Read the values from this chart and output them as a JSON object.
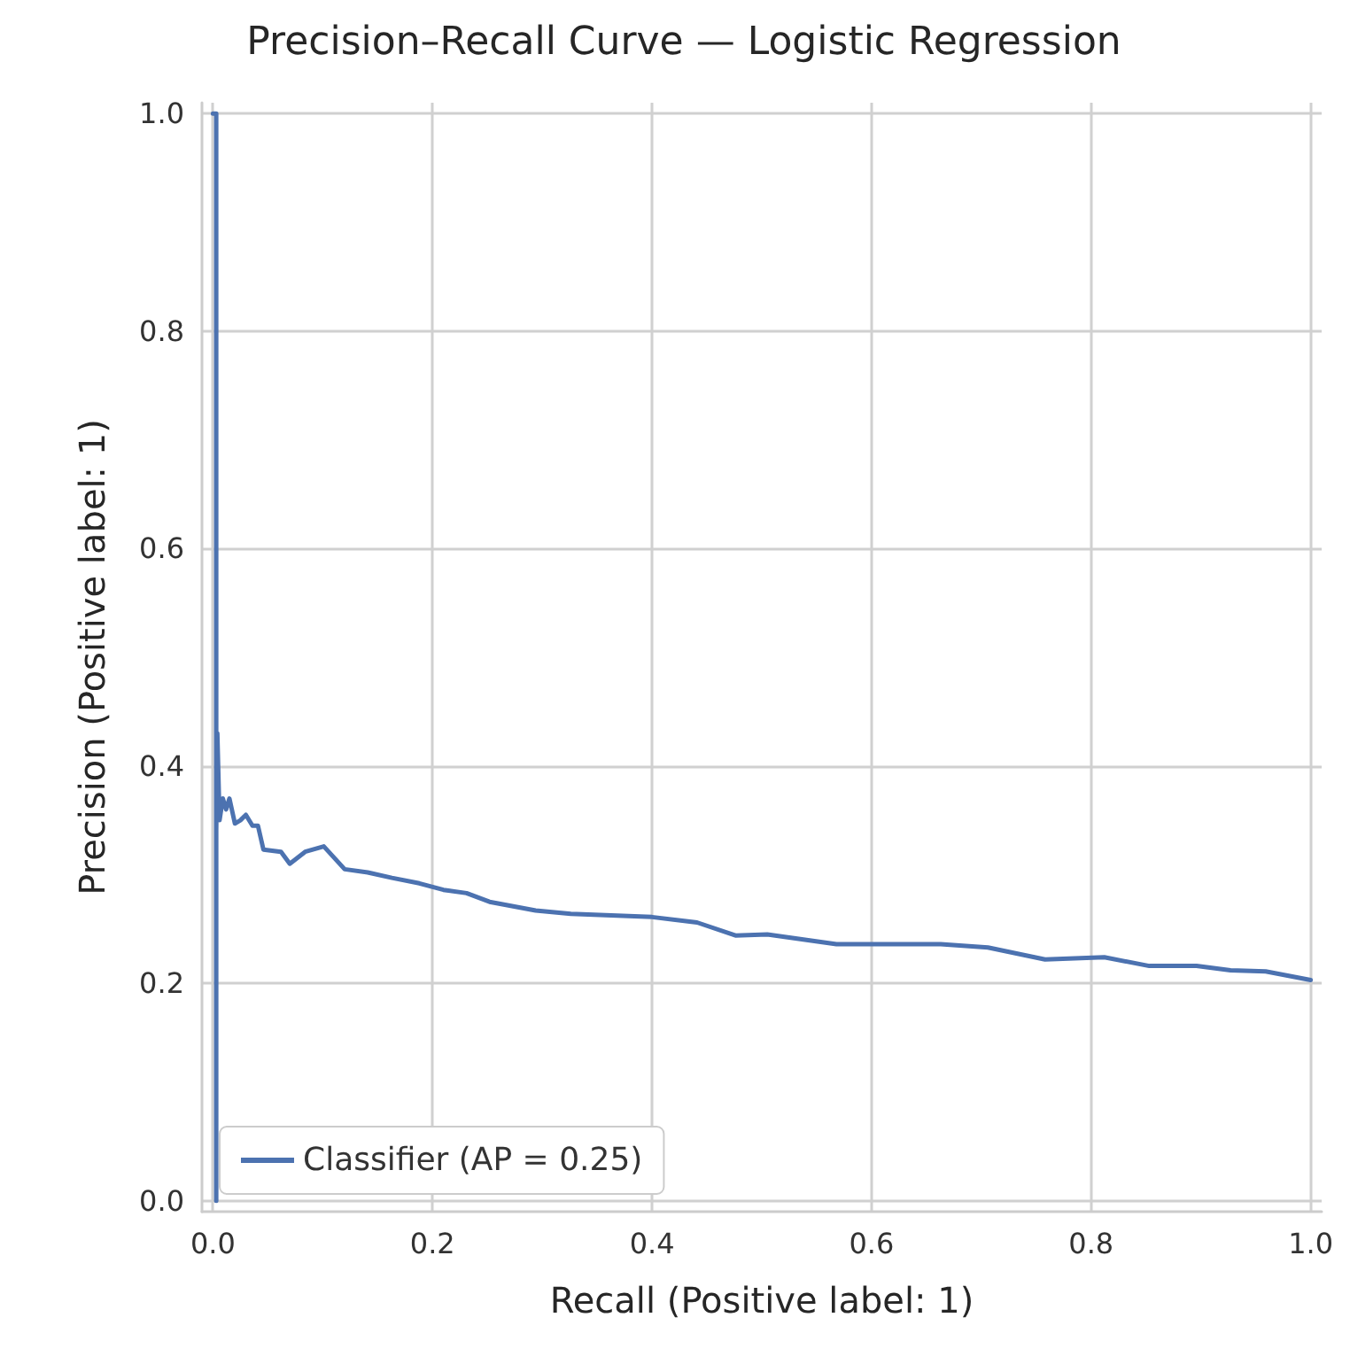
{
  "chart_data": {
    "type": "line",
    "title": "Precision–Recall Curve — Logistic Regression",
    "xlabel": "Recall (Positive label: 1)",
    "ylabel": "Precision (Positive label: 1)",
    "series": [
      {
        "name": "Classifier (AP = 0.25)",
        "color": "#4c72b0",
        "x": [
          0,
          0.003,
          0.003,
          0.003,
          0.004,
          0.006,
          0.009,
          0.012,
          0.015,
          0.02,
          0.025,
          0.03,
          0.036,
          0.041,
          0.046,
          0.062,
          0.07,
          0.084,
          0.101,
          0.12,
          0.141,
          0.163,
          0.188,
          0.21,
          0.231,
          0.252,
          0.294,
          0.326,
          0.4,
          0.441,
          0.476,
          0.505,
          0.568,
          0.663,
          0.706,
          0.758,
          0.812,
          0.853,
          0.896,
          0.927,
          0.959,
          1.0
        ],
        "values": [
          1.0,
          1.0,
          0.0,
          0.34,
          0.43,
          0.35,
          0.37,
          0.36,
          0.37,
          0.347,
          0.35,
          0.355,
          0.345,
          0.345,
          0.323,
          0.321,
          0.31,
          0.321,
          0.326,
          0.305,
          0.302,
          0.297,
          0.292,
          0.286,
          0.283,
          0.275,
          0.267,
          0.264,
          0.261,
          0.256,
          0.244,
          0.245,
          0.236,
          0.236,
          0.233,
          0.222,
          0.224,
          0.216,
          0.216,
          0.212,
          0.211,
          0.203
        ]
      }
    ],
    "xlim": [
      -0.01,
      1.01
    ],
    "ylim": [
      -0.01,
      1.01
    ],
    "xticks": [
      {
        "value": 0,
        "label": "0.0"
      },
      {
        "value": 0.2,
        "label": "0.2"
      },
      {
        "value": 0.4,
        "label": "0.4"
      },
      {
        "value": 0.6,
        "label": "0.6"
      },
      {
        "value": 0.8,
        "label": "0.8"
      },
      {
        "value": 1,
        "label": "1.0"
      }
    ],
    "yticks": [
      {
        "value": 0,
        "label": "0.0"
      },
      {
        "value": 0.2,
        "label": "0.2"
      },
      {
        "value": 0.4,
        "label": "0.4"
      },
      {
        "value": 0.6,
        "label": "0.6"
      },
      {
        "value": 0.8,
        "label": "0.8"
      },
      {
        "value": 1,
        "label": "1.0"
      }
    ],
    "grid": true,
    "legend": "bottom left",
    "marker": "none",
    "line_style": "solid"
  }
}
